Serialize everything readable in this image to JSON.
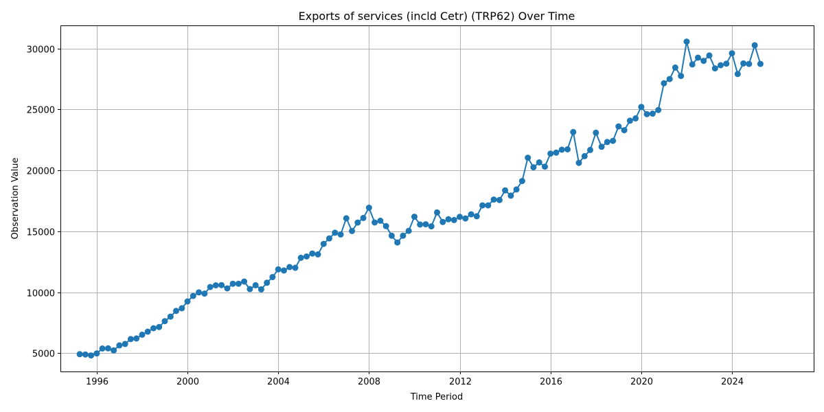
{
  "chart_data": {
    "type": "line",
    "title": "Exports of services (incld Cetr) (TRP62) Over Time",
    "xlabel": "Time Period",
    "ylabel": "Observation Value",
    "xlim": [
      1994.4,
      2027.6
    ],
    "ylim": [
      3500,
      31900
    ],
    "xticks": [
      1996,
      2000,
      2004,
      2008,
      2012,
      2016,
      2020,
      2024
    ],
    "yticks": [
      5000,
      10000,
      15000,
      20000,
      25000,
      30000
    ],
    "grid": true,
    "legend": "none",
    "color": "#1f77b4",
    "x_start": 1995.25,
    "x_step": 0.25,
    "values": [
      4920,
      4900,
      4820,
      4980,
      5390,
      5400,
      5230,
      5640,
      5760,
      6160,
      6210,
      6520,
      6770,
      7050,
      7150,
      7630,
      8000,
      8470,
      8690,
      9250,
      9700,
      9990,
      9890,
      10430,
      10570,
      10590,
      10320,
      10700,
      10700,
      10880,
      10260,
      10580,
      10240,
      10780,
      11250,
      11880,
      11790,
      12070,
      12010,
      12830,
      12940,
      13180,
      13110,
      13970,
      14420,
      14890,
      14740,
      16070,
      15030,
      15720,
      16100,
      16940,
      15730,
      15870,
      15430,
      14640,
      14090,
      14640,
      15040,
      16200,
      15560,
      15580,
      15410,
      16550,
      15770,
      15990,
      15930,
      16190,
      16060,
      16400,
      16240,
      17130,
      17130,
      17610,
      17570,
      18360,
      17930,
      18440,
      19130,
      21040,
      20260,
      20660,
      20310,
      21380,
      21460,
      21700,
      21730,
      23150,
      20620,
      21170,
      21680,
      23090,
      21940,
      22330,
      22430,
      23610,
      23300,
      24080,
      24270,
      25210,
      24620,
      24660,
      24960,
      27150,
      27500,
      28440,
      27750,
      30570,
      28700,
      29250,
      28990,
      29430,
      28370,
      28630,
      28760,
      29610,
      27910,
      28780,
      28740,
      30270,
      28740
    ]
  }
}
